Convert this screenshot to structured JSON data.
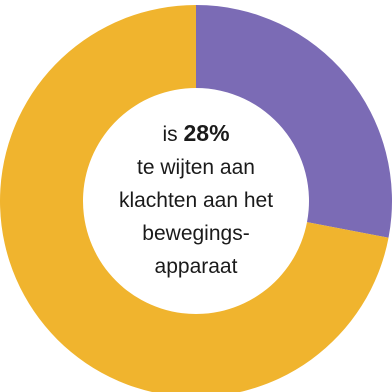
{
  "chart_data": {
    "type": "pie",
    "donut": true,
    "slices": [
      {
        "value": 28,
        "color": "#7b6bb5"
      },
      {
        "value": 72,
        "color": "#f0b42e"
      }
    ],
    "center_text": {
      "prefix": "is",
      "value": "28%",
      "lines": [
        "te wijten aan",
        "klachten aan het",
        "bewegings-",
        "apparaat"
      ]
    }
  }
}
